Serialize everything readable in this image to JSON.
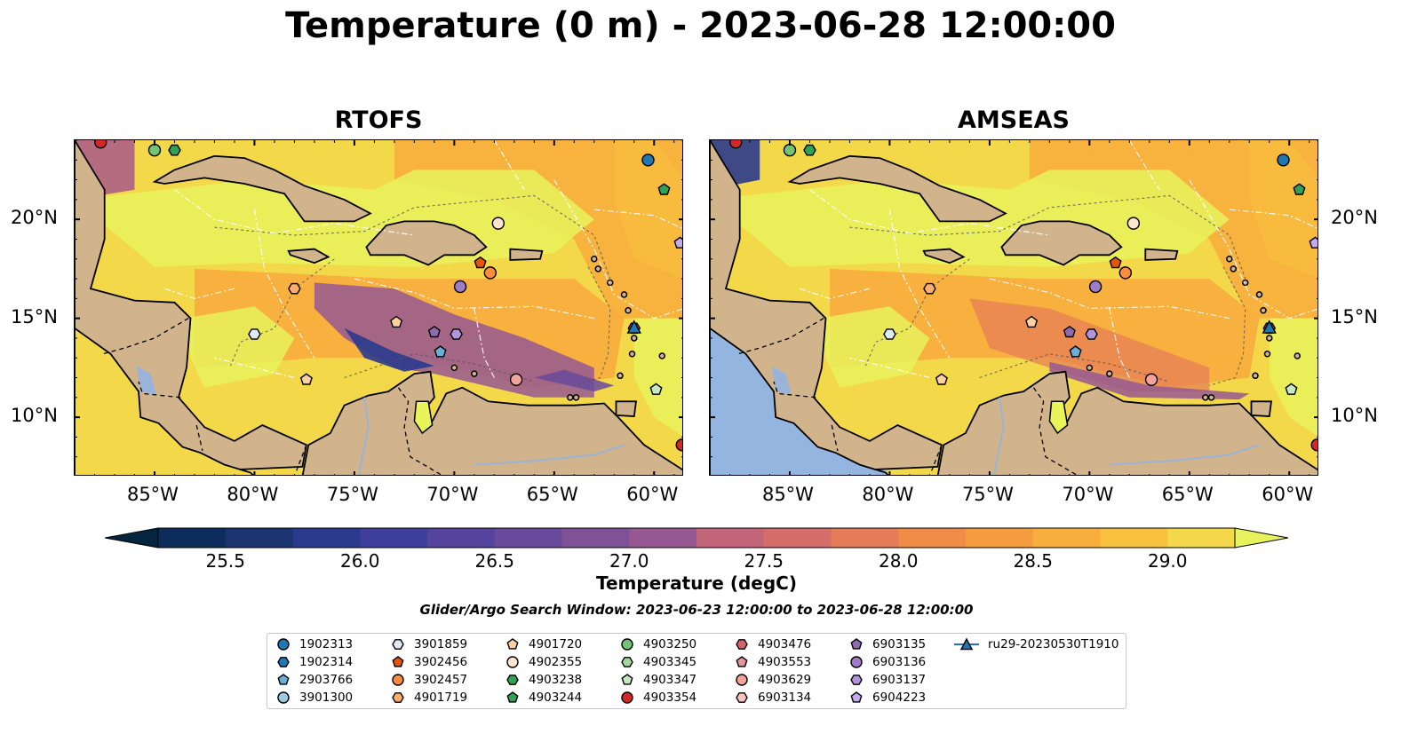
{
  "title": "Temperature (0 m) - 2023-06-28 12:00:00",
  "panels": [
    {
      "name": "RTOFS"
    },
    {
      "name": "AMSEAS"
    }
  ],
  "map_extent": {
    "lon": [
      -89,
      -58.5
    ],
    "lat": [
      7,
      24
    ]
  },
  "lat_ticks": [
    {
      "value": 20,
      "label": "20°N"
    },
    {
      "value": 15,
      "label": "15°N"
    },
    {
      "value": 10,
      "label": "10°N"
    }
  ],
  "lon_ticks": [
    {
      "value": -85,
      "label": "85°W"
    },
    {
      "value": -80,
      "label": "80°W"
    },
    {
      "value": -75,
      "label": "75°W"
    },
    {
      "value": -70,
      "label": "70°W"
    },
    {
      "value": -65,
      "label": "65°W"
    },
    {
      "value": -60,
      "label": "60°W"
    }
  ],
  "colorbar": {
    "label": "Temperature (degC)",
    "min": 25.25,
    "max": 29.25,
    "extend": "both",
    "ticks": [
      "25.5",
      "26.0",
      "26.5",
      "27.0",
      "27.5",
      "28.0",
      "28.5",
      "29.0"
    ],
    "colors": [
      "#04253f",
      "#0c2c5c",
      "#1b3470",
      "#2b3a8c",
      "#3e3f9c",
      "#55449d",
      "#6a4a9b",
      "#7f5196",
      "#965892",
      "#ae5f86",
      "#c3667a",
      "#d56e6b",
      "#e57c58",
      "#f08c48",
      "#f59c3e",
      "#f8ae3d",
      "#f8c240",
      "#f3d84a",
      "#e8f25c"
    ]
  },
  "colors": {
    "land": "#d2b48c",
    "land_alt": "#cdb18c",
    "lake": "#9ab3d8",
    "ocean_blank": "#94b5e0",
    "warm": "#f1d146",
    "hot": "#e8f45a"
  },
  "search_window": "Glider/Argo Search Window: 2023-06-23 12:00:00 to 2023-06-28 12:00:00",
  "legend": [
    {
      "label": "1902313",
      "marker": "circle",
      "color": "#1f77b4"
    },
    {
      "label": "1902314",
      "marker": "hexagon",
      "color": "#1f77b4"
    },
    {
      "label": "2903766",
      "marker": "pentagon",
      "color": "#6baed6"
    },
    {
      "label": "3901300",
      "marker": "circle",
      "color": "#9ecae1"
    },
    {
      "label": "3901859",
      "marker": "hexagon",
      "color": "#deebf7"
    },
    {
      "label": "3902456",
      "marker": "pentagon",
      "color": "#e6550d"
    },
    {
      "label": "3902457",
      "marker": "circle",
      "color": "#fd8d3c"
    },
    {
      "label": "4901719",
      "marker": "hexagon",
      "color": "#fdae6b"
    },
    {
      "label": "4901720",
      "marker": "pentagon",
      "color": "#fdd0a2"
    },
    {
      "label": "4902355",
      "marker": "circle",
      "color": "#fee6ce"
    },
    {
      "label": "4903238",
      "marker": "hexagon",
      "color": "#31a354"
    },
    {
      "label": "4903244",
      "marker": "pentagon",
      "color": "#31a354"
    },
    {
      "label": "4903250",
      "marker": "circle",
      "color": "#74c476"
    },
    {
      "label": "4903345",
      "marker": "hexagon",
      "color": "#a1d99b"
    },
    {
      "label": "4903347",
      "marker": "pentagon",
      "color": "#c7e9c0"
    },
    {
      "label": "4903354",
      "marker": "circle",
      "color": "#d62728"
    },
    {
      "label": "4903476",
      "marker": "hexagon",
      "color": "#d6616b"
    },
    {
      "label": "4903553",
      "marker": "pentagon",
      "color": "#e7969c"
    },
    {
      "label": "4903629",
      "marker": "circle",
      "color": "#f3a39a"
    },
    {
      "label": "6903134",
      "marker": "hexagon",
      "color": "#fcc5c0"
    },
    {
      "label": "6903135",
      "marker": "pentagon",
      "color": "#8c6bb1"
    },
    {
      "label": "6903136",
      "marker": "circle",
      "color": "#9e7cc9"
    },
    {
      "label": "6903137",
      "marker": "hexagon",
      "color": "#b294dd"
    },
    {
      "label": "6904223",
      "marker": "pentagon",
      "color": "#c5a8ee"
    },
    {
      "label": "ru29-20230530T1910",
      "marker": "triangle-line",
      "color": "#1f77b4"
    }
  ],
  "platforms": [
    {
      "id": "4903354",
      "lon": -87.7,
      "lat": 23.9
    },
    {
      "id": "4903250",
      "lon": -85.0,
      "lat": 23.5
    },
    {
      "id": "4903238",
      "lon": -84.0,
      "lat": 23.5
    },
    {
      "id": "1902313",
      "lon": -60.3,
      "lat": 23.0
    },
    {
      "id": "4903244",
      "lon": -59.5,
      "lat": 21.5
    },
    {
      "id": "4902355",
      "lon": -67.8,
      "lat": 19.8
    },
    {
      "id": "6904223",
      "lon": -58.7,
      "lat": 18.8
    },
    {
      "id": "3902456",
      "lon": -68.7,
      "lat": 17.8
    },
    {
      "id": "3902457",
      "lon": -68.2,
      "lat": 17.3
    },
    {
      "id": "4901719",
      "lon": -78.0,
      "lat": 16.5
    },
    {
      "id": "6903136",
      "lon": -69.7,
      "lat": 16.6
    },
    {
      "id": "4901720",
      "lon": -72.9,
      "lat": 14.8
    },
    {
      "id": "3901859",
      "lon": -80.0,
      "lat": 14.2
    },
    {
      "id": "6903135",
      "lon": -71.0,
      "lat": 14.3
    },
    {
      "id": "6903137",
      "lon": -69.9,
      "lat": 14.2
    },
    {
      "id": "2903766",
      "lon": -70.7,
      "lat": 13.3
    },
    {
      "id": "4903476",
      "lon": -61.0,
      "lat": 14.5
    },
    {
      "id": "4901720",
      "lon": -77.4,
      "lat": 11.9
    },
    {
      "id": "4903629",
      "lon": -66.9,
      "lat": 11.9
    },
    {
      "id": "4903347",
      "lon": -59.9,
      "lat": 11.4
    },
    {
      "id": "4903354",
      "lon": -58.6,
      "lat": 8.6
    }
  ],
  "glider": {
    "id": "ru29-20230530T1910",
    "lon": -61.0,
    "lat": 14.5
  }
}
